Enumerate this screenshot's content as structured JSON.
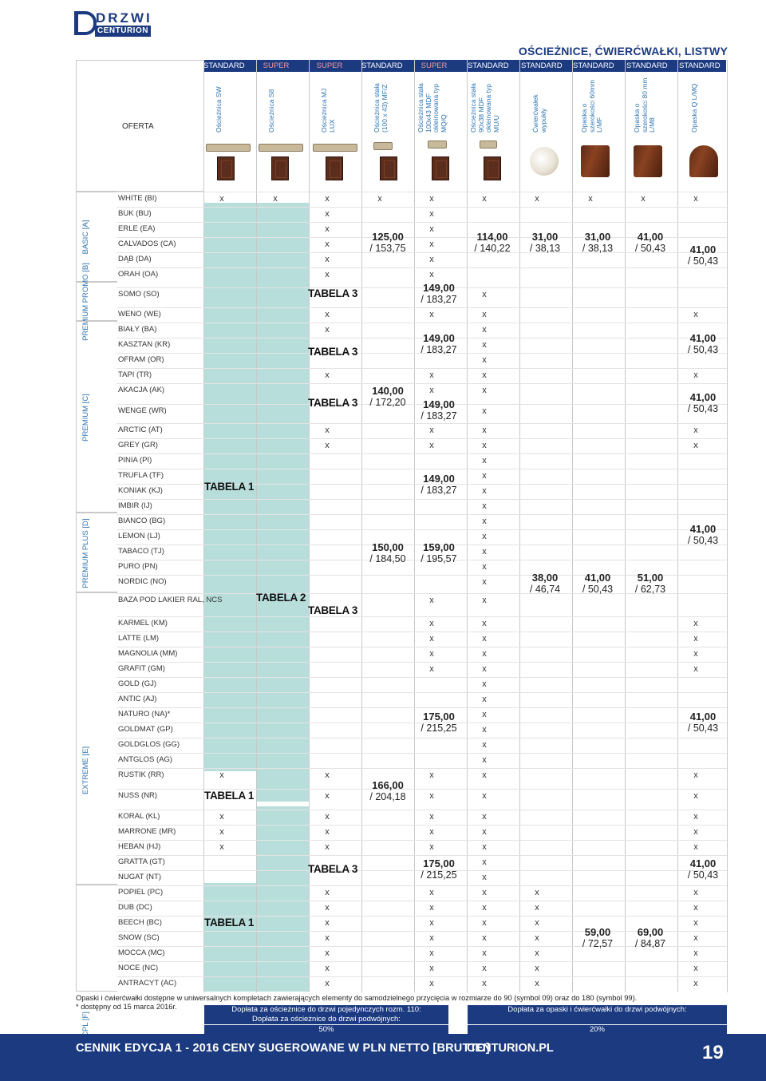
{
  "brand": {
    "top": "DRZWI",
    "bottom": "CENTURION"
  },
  "title": "OŚCIEŻNICE, ĆWIERĆWAŁKI, LISTWY",
  "offer_label": "OFERTA",
  "categories": [
    "STANDARD",
    "SUPER",
    "SUPER",
    "STANDARD",
    "SUPER",
    "STANDARD",
    "STANDARD",
    "STANDARD",
    "STANDARD",
    "STANDARD"
  ],
  "columns": [
    "Ościeżnica SW",
    "Ościeżnica S8",
    "Ościeżnica MJ LUX",
    "Ościeżnica stała (100 x 43) MF/Z",
    "Ościeżnica stała 100x43 MDF okleinowana typ MQ/Q",
    "Ościeżnica stała 90x38 MDF okleinowana typ MU/U",
    "Ćwierćwałek wypukły",
    "Opaska o szerokości 60mm L/MF",
    "Opaska o szerokości 80 mm L/M8",
    "Opaska Q L/MQ"
  ],
  "groups": [
    "BASIC [A]",
    "PREMIUM PROMO [B]",
    "PREMIUM [C]",
    "PREMIUM PLUS [D]",
    "EXTREME [E]",
    "CPL [F]"
  ],
  "rows": [
    "WHITE (BI)",
    "BUK (BU)",
    "ERLE (EA)",
    "CALVADOS (CA)",
    "DĄB (DA)",
    "ORAH (OA)",
    "SOMO (SO)",
    "WENO (WE)",
    "BIAŁY (BA)",
    "KASZTAN (KR)",
    "OFRAM (OR)",
    "TAPI (TR)",
    "AKACJA (AK)",
    "WENGE (WR)",
    "ARCTIC (AT)",
    "GREY (GR)",
    "PINIA (PI)",
    "TRUFLA (TF)",
    "KONIAK (KJ)",
    "IMBIR (IJ)",
    "BIANCO (BG)",
    "LEMON (LJ)",
    "TABACO (TJ)",
    "PURO (PN)",
    "NORDIC (NO)",
    "BAZA POD LAKIER RAL, NCS",
    "KARMEL (KM)",
    "LATTE (LM)",
    "MAGNOLIA (MM)",
    "GRAFIT (GM)",
    "GOLD (GJ)",
    "ANTIC (AJ)",
    "NATURO (NA)*",
    "GOLDMAT (GP)",
    "GOLDGLOS (GG)",
    "ANTGLOS (AG)",
    "RUSTIK (RR)",
    "NUSS (NR)",
    "KORAL (KL)",
    "MARRONE (MR)",
    "HEBAN (HJ)",
    "GRATTA (GT)",
    "NUGAT (NT)",
    "POPIEL (PC)",
    "DUB (DC)",
    "BEECH (BC)",
    "SNOW (SC)",
    "MOCCA (MC)",
    "NOCE (NC)",
    "ANTRACYT (AC)"
  ],
  "mark": "x",
  "tabela": {
    "t1": "TABELA 1",
    "t2": "TABELA 2",
    "t3": "TABELA 3"
  },
  "prices": {
    "p125": "125,00",
    "p125b": "/ 153,75",
    "p114": "114,00",
    "p114b": "/ 140,22",
    "p31": "31,00",
    "p31b": "/ 38,13",
    "p41": "41,00",
    "p41b": "/ 50,43",
    "p149": "149,00",
    "p149b": "/ 183,27",
    "p140": "140,00",
    "p140b": "/ 172,20",
    "p150": "150,00",
    "p150b": "/ 184,50",
    "p159": "159,00",
    "p159b": "/ 195,57",
    "p38": "38,00",
    "p38b": "/ 46,74",
    "p51": "51,00",
    "p51b": "/ 62,73",
    "p175": "175,00",
    "p175b": "/ 215,25",
    "p166": "166,00",
    "p166b": "/ 204,18",
    "p59": "59,00",
    "p59b": "/ 72,57",
    "p69": "69,00",
    "p69b": "/ 84,87"
  },
  "footnote1": "Opaski i ćwierćwałki dostępne w uniwersalnych kompletach zawierających elementy do samodzielnego przycięcia w rozmiarze do 90 (symbol 09) oraz do 180 (symbol 99).",
  "footnote2": "* dostępny od 15 marca 2016r.",
  "surcharge": {
    "single": "Dopłata za ościeżnice do drzwi pojedynczych rozm. 110:",
    "double": "Dopłata za ościeżnice do drzwi podwójnych:",
    "double_pct": "50%",
    "trim": "Dopłata za opaski i ćwierćwałki do drzwi podwójnych:",
    "trim_pct": "20%"
  },
  "footer": {
    "left": "CENNIK EDYCJA 1 - 2016 CENY SUGEROWANE W PLN NETTO [BRUTTO]",
    "site": "CENTURION.PL",
    "page": "19"
  }
}
